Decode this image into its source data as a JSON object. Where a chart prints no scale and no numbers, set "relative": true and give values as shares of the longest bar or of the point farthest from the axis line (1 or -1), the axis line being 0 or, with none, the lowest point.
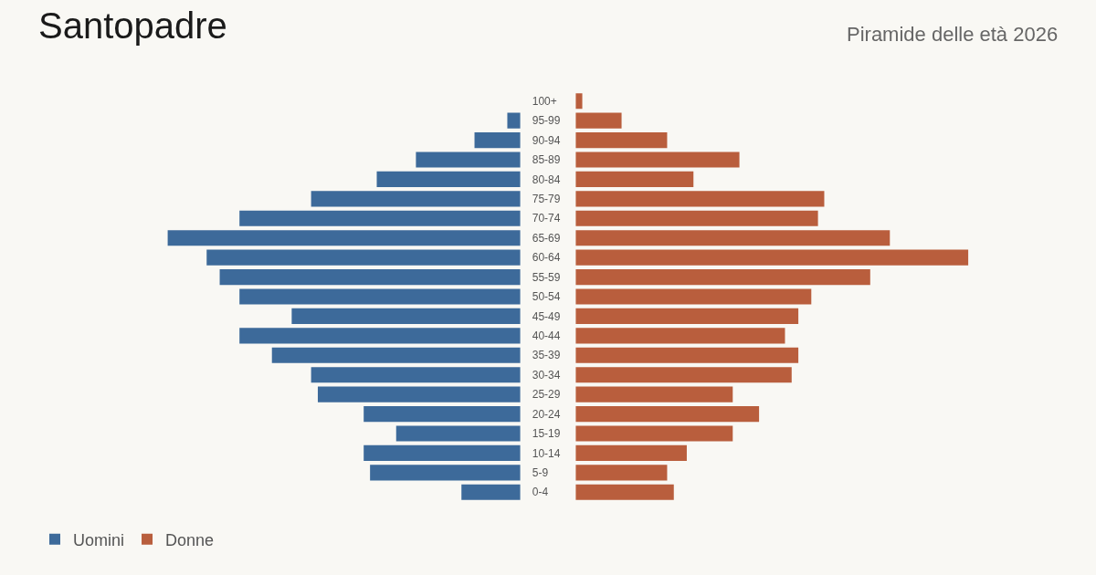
{
  "chart_data": [
    {
      "type": "bar",
      "orientation": "horizontal",
      "relative": true,
      "title": "Santopadre",
      "tick_labels": "y",
      "legend": "bottom left",
      "categories": [
        "100+",
        "95-99",
        "90-94",
        "85-89",
        "80-84",
        "75-79",
        "70-74",
        "65-69",
        "60-64",
        "55-59",
        "50-54",
        "45-49",
        "40-44",
        "35-39",
        "30-34",
        "25-29",
        "20-24",
        "15-19",
        "10-14",
        "5-9",
        "0-4"
      ],
      "series": [
        {
          "name": "Uomini",
          "color": "#3d6a9a",
          "values": [
            0,
            0.037,
            0.13,
            0.296,
            0.407,
            0.593,
            0.796,
            1,
            0.889,
            0.852,
            0.796,
            0.648,
            0.796,
            0.704,
            0.593,
            0.574,
            0.444,
            0.352,
            0.444,
            0.426,
            0.167
          ]
        }
      ]
    },
    {
      "type": "bar",
      "orientation": "horizontal",
      "relative": true,
      "subtitle": "Piramide delle età 2026",
      "tick_labels": false,
      "legend": "bottom left",
      "categories": [
        "100+",
        "95-99",
        "90-94",
        "85-89",
        "80-84",
        "75-79",
        "70-74",
        "65-69",
        "60-64",
        "55-59",
        "50-54",
        "45-49",
        "40-44",
        "35-39",
        "30-34",
        "25-29",
        "20-24",
        "15-19",
        "10-14",
        "5-9",
        "0-4"
      ],
      "series": [
        {
          "name": "Donne",
          "color": "#b95e3d",
          "values": [
            0.017,
            0.117,
            0.233,
            0.417,
            0.3,
            0.633,
            0.617,
            0.8,
            1,
            0.75,
            0.6,
            0.567,
            0.533,
            0.567,
            0.55,
            0.4,
            0.467,
            0.4,
            0.283,
            0.233,
            0.25
          ]
        }
      ]
    }
  ]
}
